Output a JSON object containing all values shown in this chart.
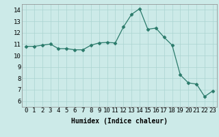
{
  "x": [
    0,
    1,
    2,
    3,
    4,
    5,
    6,
    7,
    8,
    9,
    10,
    11,
    12,
    13,
    14,
    15,
    16,
    17,
    18,
    19,
    20,
    21,
    22,
    23
  ],
  "y": [
    10.8,
    10.8,
    10.9,
    11.0,
    10.6,
    10.6,
    10.5,
    10.5,
    10.9,
    11.1,
    11.15,
    11.1,
    12.5,
    13.6,
    14.1,
    12.3,
    12.4,
    11.6,
    10.9,
    8.3,
    7.6,
    7.5,
    6.4,
    6.9
  ],
  "xlabel": "Humidex (Indice chaleur)",
  "ylim": [
    5.5,
    14.5
  ],
  "yticks": [
    6,
    7,
    8,
    9,
    10,
    11,
    12,
    13,
    14
  ],
  "xticks": [
    0,
    1,
    2,
    3,
    4,
    5,
    6,
    7,
    8,
    9,
    10,
    11,
    12,
    13,
    14,
    15,
    16,
    17,
    18,
    19,
    20,
    21,
    22,
    23
  ],
  "xtick_labels": [
    "0",
    "1",
    "2",
    "3",
    "4",
    "5",
    "6",
    "7",
    "8",
    "9",
    "10",
    "11",
    "12",
    "13",
    "14",
    "15",
    "16",
    "17",
    "18",
    "19",
    "20",
    "21",
    "22",
    "23"
  ],
  "line_color": "#2a7a6a",
  "marker": "D",
  "marker_size": 2.5,
  "bg_color": "#cceae8",
  "grid_color": "#aad4d0",
  "xlabel_fontsize": 7,
  "tick_fontsize": 6.5
}
